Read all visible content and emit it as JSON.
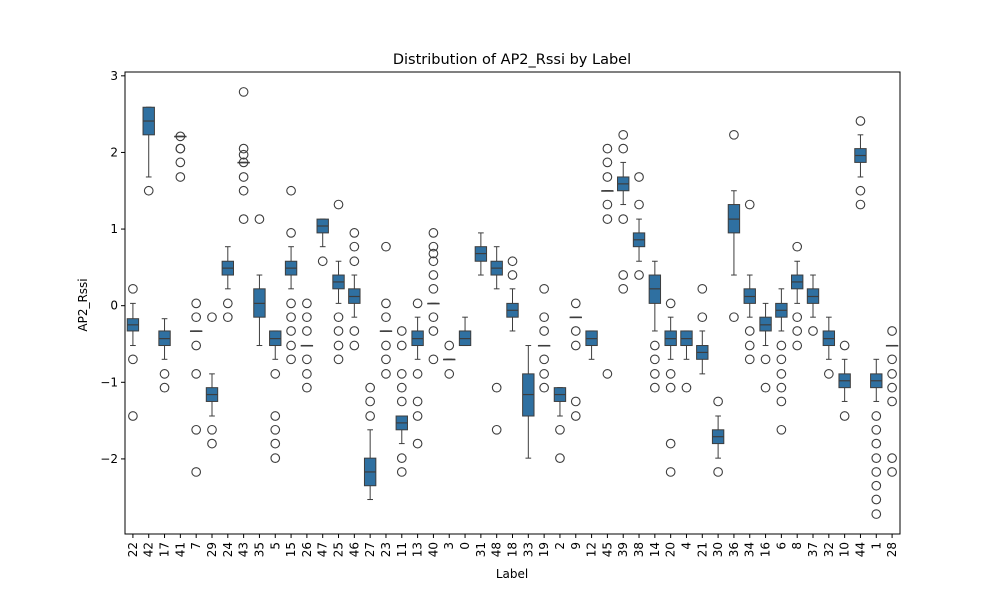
{
  "chart_data": {
    "type": "box",
    "title": "Distribution of AP2_Rssi by Label",
    "xlabel": "Label",
    "ylabel": "AP2_Rssi",
    "ylim": [
      -2.98,
      3.05
    ],
    "yticks": [
      -2,
      -1,
      0,
      1,
      2,
      3
    ],
    "ytick_labels": [
      "−2",
      "−1",
      "0",
      "1",
      "2",
      "3"
    ],
    "grid": false,
    "box_color": "#2f70a1",
    "edge_color": "#3d3d3d",
    "categories": [
      "22",
      "42",
      "17",
      "41",
      "7",
      "29",
      "24",
      "43",
      "35",
      "5",
      "15",
      "26",
      "47",
      "25",
      "46",
      "27",
      "23",
      "11",
      "13",
      "40",
      "3",
      "0",
      "31",
      "48",
      "18",
      "33",
      "19",
      "2",
      "9",
      "12",
      "45",
      "39",
      "38",
      "14",
      "20",
      "4",
      "21",
      "30",
      "36",
      "34",
      "16",
      "6",
      "8",
      "37",
      "32",
      "10",
      "44",
      "1",
      "28"
    ],
    "boxes": [
      {
        "label": "22",
        "q1": -0.33,
        "med": -0.25,
        "q3": -0.17,
        "wlo": -0.52,
        "whi": 0.03,
        "fliers": [
          0.22,
          -0.7,
          -1.44
        ]
      },
      {
        "label": "42",
        "q1": 2.23,
        "med": 2.41,
        "q3": 2.59,
        "wlo": 1.68,
        "whi": 2.59,
        "fliers": [
          1.5
        ]
      },
      {
        "label": "17",
        "q1": -0.52,
        "med": -0.43,
        "q3": -0.33,
        "wlo": -0.7,
        "whi": -0.17,
        "fliers": [
          -0.89,
          -1.07
        ]
      },
      {
        "label": "41",
        "q1": 2.21,
        "med": 2.21,
        "q3": 2.21,
        "wlo": 2.21,
        "whi": 2.21,
        "fliers": [
          2.21,
          2.05,
          2.05,
          1.87,
          1.68
        ]
      },
      {
        "label": "7",
        "q1": -0.33,
        "med": -0.33,
        "q3": -0.33,
        "wlo": -0.33,
        "whi": -0.33,
        "fliers": [
          0.03,
          -0.15,
          -0.52,
          -0.89,
          -1.62,
          -2.17
        ]
      },
      {
        "label": "29",
        "q1": -1.25,
        "med": -1.16,
        "q3": -1.07,
        "wlo": -1.44,
        "whi": -0.89,
        "fliers": [
          -0.15,
          -1.62,
          -1.8
        ]
      },
      {
        "label": "24",
        "q1": 0.4,
        "med": 0.49,
        "q3": 0.58,
        "wlo": 0.22,
        "whi": 0.77,
        "fliers": [
          0.03,
          -0.15
        ]
      },
      {
        "label": "43",
        "q1": 1.87,
        "med": 1.87,
        "q3": 1.87,
        "wlo": 1.87,
        "whi": 1.87,
        "fliers": [
          2.79,
          2.05,
          1.97,
          1.87,
          1.68,
          1.5,
          1.13
        ]
      },
      {
        "label": "35",
        "q1": -0.15,
        "med": 0.03,
        "q3": 0.22,
        "wlo": -0.52,
        "whi": 0.4,
        "fliers": [
          1.13
        ]
      },
      {
        "label": "5",
        "q1": -0.52,
        "med": -0.43,
        "q3": -0.33,
        "wlo": -0.7,
        "whi": -0.33,
        "fliers": [
          -0.89,
          -1.44,
          -1.62,
          -1.8,
          -1.99
        ]
      },
      {
        "label": "15",
        "q1": 0.4,
        "med": 0.49,
        "q3": 0.58,
        "wlo": 0.22,
        "whi": 0.77,
        "fliers": [
          1.5,
          0.95,
          0.03,
          -0.15,
          -0.33,
          -0.52,
          -0.7
        ]
      },
      {
        "label": "26",
        "q1": -0.52,
        "med": -0.52,
        "q3": -0.52,
        "wlo": -0.52,
        "whi": -0.52,
        "fliers": [
          0.03,
          -0.15,
          -0.33,
          -0.7,
          -0.89,
          -1.07
        ]
      },
      {
        "label": "47",
        "q1": 0.95,
        "med": 1.04,
        "q3": 1.13,
        "wlo": 0.77,
        "whi": 1.13,
        "fliers": [
          0.58
        ]
      },
      {
        "label": "25",
        "q1": 0.22,
        "med": 0.31,
        "q3": 0.4,
        "wlo": 0.03,
        "whi": 0.58,
        "fliers": [
          1.32,
          -0.15,
          -0.33,
          -0.52,
          -0.7
        ]
      },
      {
        "label": "46",
        "q1": 0.03,
        "med": 0.12,
        "q3": 0.22,
        "wlo": -0.15,
        "whi": 0.4,
        "fliers": [
          0.95,
          0.77,
          0.58,
          -0.33,
          -0.52
        ]
      },
      {
        "label": "27",
        "q1": -2.35,
        "med": -2.17,
        "q3": -1.99,
        "wlo": -2.53,
        "whi": -1.62,
        "fliers": [
          -1.07,
          -1.25,
          -1.44
        ]
      },
      {
        "label": "23",
        "q1": -0.33,
        "med": -0.33,
        "q3": -0.33,
        "wlo": -0.33,
        "whi": -0.33,
        "fliers": [
          0.77,
          0.03,
          -0.15,
          -0.52,
          -0.7,
          -0.89
        ]
      },
      {
        "label": "11",
        "q1": -1.62,
        "med": -1.53,
        "q3": -1.44,
        "wlo": -1.8,
        "whi": -1.44,
        "fliers": [
          -0.33,
          -0.52,
          -0.89,
          -1.07,
          -1.25,
          -1.99,
          -2.17
        ]
      },
      {
        "label": "13",
        "q1": -0.52,
        "med": -0.43,
        "q3": -0.33,
        "wlo": -0.7,
        "whi": -0.15,
        "fliers": [
          0.03,
          -0.89,
          -1.25,
          -1.44,
          -1.8
        ]
      },
      {
        "label": "40",
        "q1": 0.03,
        "med": 0.03,
        "q3": 0.03,
        "wlo": 0.03,
        "whi": 0.03,
        "fliers": [
          0.95,
          0.77,
          0.68,
          0.58,
          0.4,
          0.22,
          -0.15,
          -0.33,
          -0.7
        ]
      },
      {
        "label": "3",
        "q1": -0.7,
        "med": -0.7,
        "q3": -0.7,
        "wlo": -0.7,
        "whi": -0.7,
        "fliers": [
          -0.52,
          -0.89
        ]
      },
      {
        "label": "0",
        "q1": -0.52,
        "med": -0.43,
        "q3": -0.33,
        "wlo": -0.52,
        "whi": -0.15,
        "fliers": []
      },
      {
        "label": "31",
        "q1": 0.58,
        "med": 0.68,
        "q3": 0.77,
        "wlo": 0.4,
        "whi": 0.95,
        "fliers": []
      },
      {
        "label": "48",
        "q1": 0.4,
        "med": 0.49,
        "q3": 0.58,
        "wlo": 0.22,
        "whi": 0.77,
        "fliers": [
          -1.07,
          -1.62
        ]
      },
      {
        "label": "18",
        "q1": -0.15,
        "med": -0.06,
        "q3": 0.03,
        "wlo": -0.33,
        "whi": 0.22,
        "fliers": [
          0.58,
          0.4
        ]
      },
      {
        "label": "33",
        "q1": -1.44,
        "med": -1.16,
        "q3": -0.89,
        "wlo": -1.99,
        "whi": -0.52,
        "fliers": []
      },
      {
        "label": "19",
        "q1": -0.52,
        "med": -0.52,
        "q3": -0.52,
        "wlo": -0.52,
        "whi": -0.52,
        "fliers": [
          0.22,
          -0.15,
          -0.33,
          -0.7,
          -0.89,
          -1.07
        ]
      },
      {
        "label": "2",
        "q1": -1.25,
        "med": -1.16,
        "q3": -1.07,
        "wlo": -1.44,
        "whi": -1.07,
        "fliers": [
          -1.62,
          -1.99
        ]
      },
      {
        "label": "9",
        "q1": -0.15,
        "med": -0.15,
        "q3": -0.15,
        "wlo": -0.15,
        "whi": -0.15,
        "fliers": [
          0.03,
          -0.33,
          -0.52,
          -1.25,
          -1.44
        ]
      },
      {
        "label": "12",
        "q1": -0.52,
        "med": -0.43,
        "q3": -0.33,
        "wlo": -0.7,
        "whi": -0.33,
        "fliers": []
      },
      {
        "label": "45",
        "q1": 1.5,
        "med": 1.5,
        "q3": 1.5,
        "wlo": 1.5,
        "whi": 1.5,
        "fliers": [
          2.05,
          1.87,
          1.68,
          1.32,
          1.13,
          -0.89
        ]
      },
      {
        "label": "39",
        "q1": 1.5,
        "med": 1.59,
        "q3": 1.68,
        "wlo": 1.32,
        "whi": 1.87,
        "fliers": [
          2.23,
          2.05,
          1.13,
          0.4,
          0.22
        ]
      },
      {
        "label": "38",
        "q1": 0.77,
        "med": 0.86,
        "q3": 0.95,
        "wlo": 0.58,
        "whi": 1.13,
        "fliers": [
          1.68,
          1.32,
          0.4
        ]
      },
      {
        "label": "14",
        "q1": 0.03,
        "med": 0.22,
        "q3": 0.4,
        "wlo": -0.33,
        "whi": 0.58,
        "fliers": [
          -0.52,
          -0.7,
          -0.89,
          -1.07
        ]
      },
      {
        "label": "20",
        "q1": -0.52,
        "med": -0.43,
        "q3": -0.33,
        "wlo": -0.7,
        "whi": -0.15,
        "fliers": [
          0.03,
          -0.89,
          -1.07,
          -1.8,
          -2.17
        ]
      },
      {
        "label": "4",
        "q1": -0.52,
        "med": -0.43,
        "q3": -0.33,
        "wlo": -0.7,
        "whi": -0.33,
        "fliers": [
          -1.07
        ]
      },
      {
        "label": "21",
        "q1": -0.7,
        "med": -0.61,
        "q3": -0.52,
        "wlo": -0.89,
        "whi": -0.33,
        "fliers": [
          0.22,
          -0.15
        ]
      },
      {
        "label": "30",
        "q1": -1.8,
        "med": -1.71,
        "q3": -1.62,
        "wlo": -1.99,
        "whi": -1.44,
        "fliers": [
          -1.25,
          -2.17
        ]
      },
      {
        "label": "36",
        "q1": 0.95,
        "med": 1.13,
        "q3": 1.32,
        "wlo": 0.4,
        "whi": 1.5,
        "fliers": [
          2.23,
          -0.15
        ]
      },
      {
        "label": "34",
        "q1": 0.03,
        "med": 0.12,
        "q3": 0.22,
        "wlo": -0.15,
        "whi": 0.4,
        "fliers": [
          1.32,
          -0.33,
          -0.52,
          -0.7
        ]
      },
      {
        "label": "16",
        "q1": -0.33,
        "med": -0.25,
        "q3": -0.15,
        "wlo": -0.52,
        "whi": 0.03,
        "fliers": [
          -0.7,
          -1.07
        ]
      },
      {
        "label": "6",
        "q1": -0.15,
        "med": -0.06,
        "q3": 0.03,
        "wlo": -0.33,
        "whi": 0.22,
        "fliers": [
          -0.52,
          -0.7,
          -0.89,
          -1.07,
          -1.25,
          -1.62
        ]
      },
      {
        "label": "8",
        "q1": 0.22,
        "med": 0.31,
        "q3": 0.4,
        "wlo": 0.03,
        "whi": 0.58,
        "fliers": [
          0.77,
          -0.15,
          -0.33,
          -0.52
        ]
      },
      {
        "label": "37",
        "q1": 0.03,
        "med": 0.12,
        "q3": 0.22,
        "wlo": -0.15,
        "whi": 0.4,
        "fliers": [
          -0.33
        ]
      },
      {
        "label": "32",
        "q1": -0.52,
        "med": -0.43,
        "q3": -0.33,
        "wlo": -0.7,
        "whi": -0.15,
        "fliers": [
          -0.89
        ]
      },
      {
        "label": "10",
        "q1": -1.07,
        "med": -0.98,
        "q3": -0.89,
        "wlo": -1.25,
        "whi": -0.7,
        "fliers": [
          -0.52,
          -1.44
        ]
      },
      {
        "label": "44",
        "q1": 1.87,
        "med": 1.96,
        "q3": 2.05,
        "wlo": 1.68,
        "whi": 2.23,
        "fliers": [
          2.41,
          1.5,
          1.32
        ]
      },
      {
        "label": "1",
        "q1": -1.07,
        "med": -0.98,
        "q3": -0.89,
        "wlo": -1.25,
        "whi": -0.7,
        "fliers": [
          -1.44,
          -1.62,
          -1.8,
          -1.99,
          -2.17,
          -2.35,
          -2.53,
          -2.72
        ]
      },
      {
        "label": "28",
        "q1": -0.52,
        "med": -0.52,
        "q3": -0.52,
        "wlo": -0.52,
        "whi": -0.52,
        "fliers": [
          -0.33,
          -0.7,
          -0.89,
          -1.07,
          -1.25,
          -1.99,
          -2.17
        ]
      }
    ]
  }
}
